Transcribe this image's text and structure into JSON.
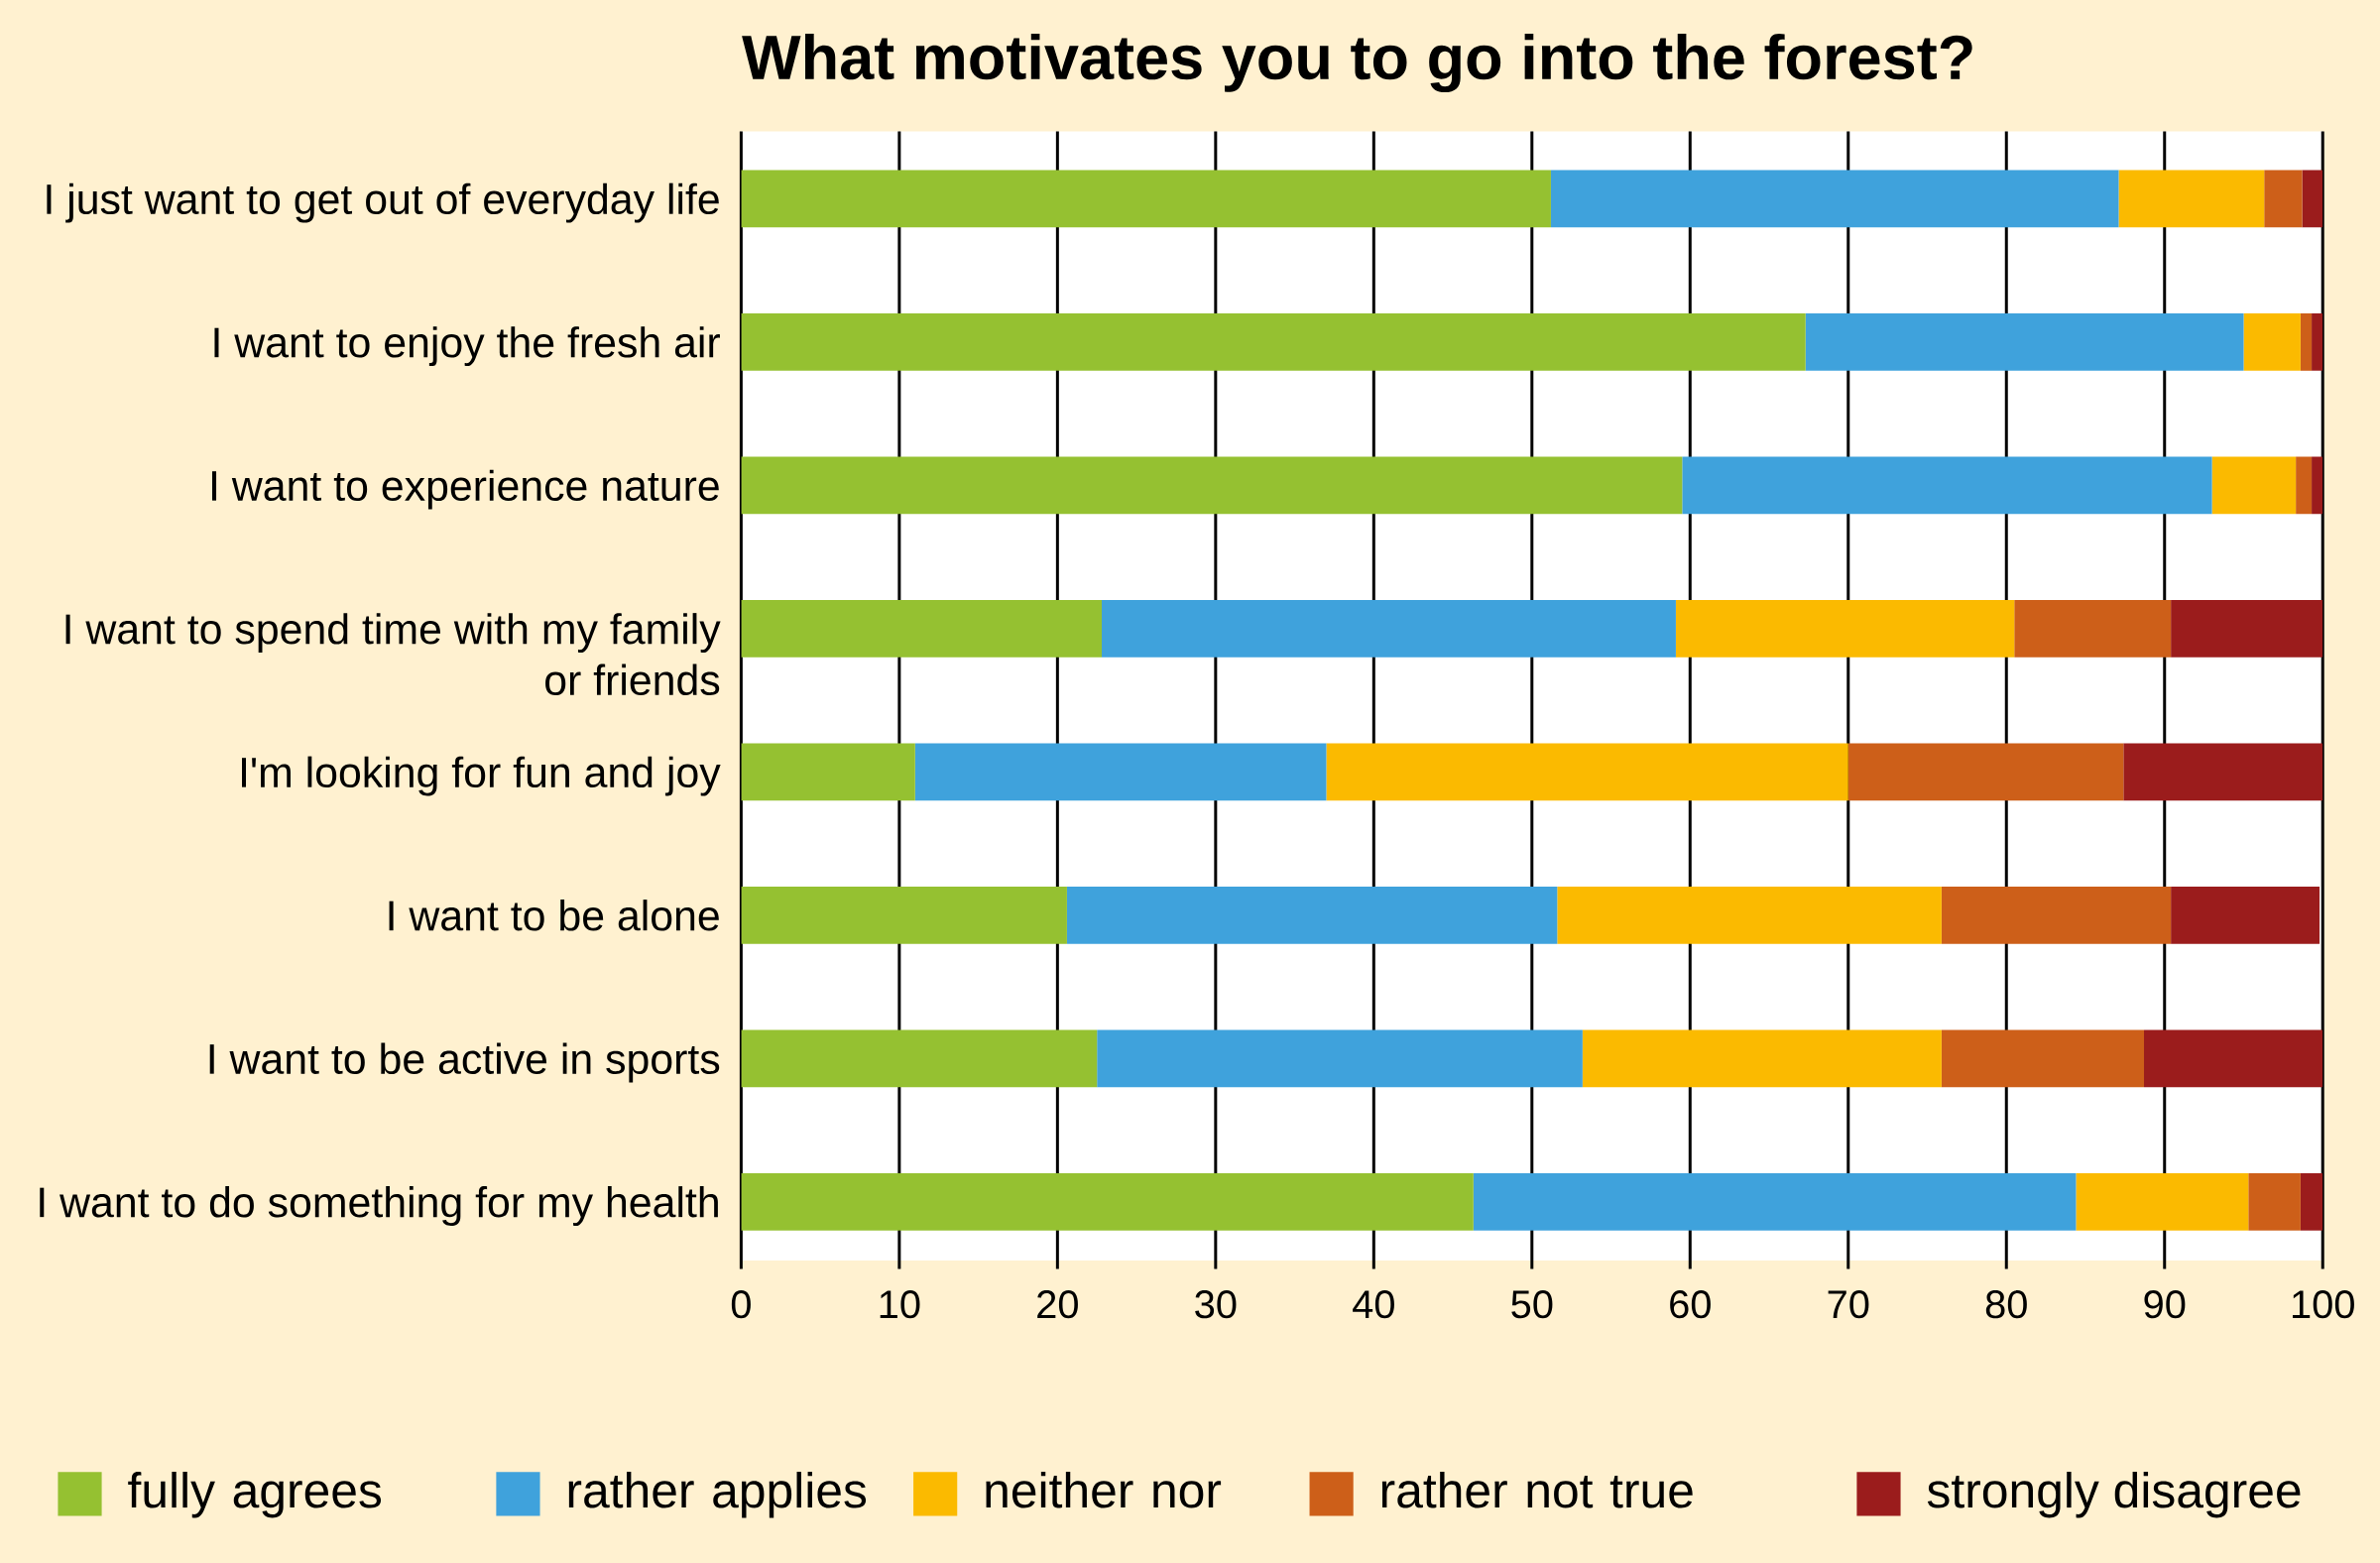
{
  "chart_data": {
    "type": "bar",
    "orientation": "horizontal",
    "stacked": true,
    "title": "What motivates you to go into the forest?",
    "categories": [
      "I just want to get out of everyday life",
      "I want to enjoy the fresh air",
      "I want to experience nature",
      "I want to spend time with my family or friends",
      "I'm looking for fun and joy",
      "I want to be alone",
      "I want to be active in sports",
      "I want to do something for my health"
    ],
    "series": [
      {
        "name": "fully agrees",
        "color": "#95c131",
        "values": [
          51.2,
          67.3,
          59.5,
          22.8,
          11.0,
          20.6,
          22.5,
          46.3
        ]
      },
      {
        "name": "rather applies",
        "color": "#3fa2dc",
        "values": [
          35.9,
          27.7,
          33.5,
          36.3,
          26.0,
          31.0,
          30.7,
          38.1
        ]
      },
      {
        "name": "neither nor",
        "color": "#fbba00",
        "values": [
          9.2,
          3.6,
          5.3,
          21.4,
          33.0,
          24.3,
          22.7,
          10.9
        ]
      },
      {
        "name": "rather not true",
        "color": "#cd5f19",
        "values": [
          2.4,
          0.7,
          1.0,
          9.9,
          17.4,
          14.5,
          12.8,
          3.3
        ]
      },
      {
        "name": "strongly disagree",
        "color": "#9b1c1c",
        "values": [
          1.3,
          0.7,
          0.7,
          9.6,
          12.6,
          9.4,
          11.3,
          1.4
        ]
      }
    ],
    "xlim": [
      0,
      100
    ],
    "xticks": [
      0,
      10,
      20,
      30,
      40,
      50,
      60,
      70,
      80,
      90,
      100
    ],
    "grid": "x",
    "legend": "bottom"
  }
}
